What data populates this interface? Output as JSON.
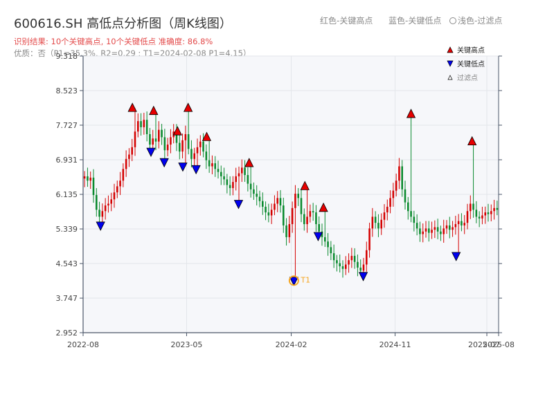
{
  "header": {
    "title": "600616.SH 高低点分析图（周K线图）",
    "summary": "识别结果: 10个关键高点, 10个关键低点  准确度: 86.8%",
    "quality": "优质：否（P1=35.3%, R2=0.29 ; T1=2024-02-08 P1=4.15）",
    "legend_top": [
      "红色-关键高点",
      "蓝色-关键低点",
      "浅色-过滤点"
    ]
  },
  "colors": {
    "up": "#d40000",
    "down": "#0a8a2e",
    "high_marker": "#e60000",
    "low_marker": "#0000ee",
    "t1_marker": "#f5a623",
    "axis": "#4a5568",
    "grid": "#e3e6ea",
    "plot_bg": "#f6f7fa"
  },
  "chart_data": {
    "type": "candlestick",
    "title": "600616.SH 高低点分析图（周K线图）",
    "x_ticks": [
      "2022-08",
      "2023-05",
      "2024-02",
      "2024-11",
      "2025-07",
      "2025-08"
    ],
    "y_ticks": [
      "2.952",
      "3.747",
      "4.543",
      "5.339",
      "6.135",
      "6.931",
      "7.727",
      "8.523",
      "9.318"
    ],
    "ylim": [
      2.952,
      9.318
    ],
    "grid": true,
    "legend": {
      "placement": "top-right",
      "entries": [
        {
          "label": "关键高点",
          "marker": "up-triangle",
          "color": "#e60000"
        },
        {
          "label": "关键低点",
          "marker": "down-triangle",
          "color": "#0000ee"
        },
        {
          "label": "过滤点",
          "marker": "small-up-triangle",
          "color": "#ffffff"
        }
      ]
    },
    "annotations": [
      {
        "label": "T1",
        "date": "2024-02-08",
        "value": 4.15
      }
    ],
    "key_highs": [
      {
        "date": "2022-12-09",
        "value": 8.12
      },
      {
        "date": "2023-02-03",
        "value": 8.05
      },
      {
        "date": "2023-04-07",
        "value": 7.58
      },
      {
        "date": "2023-05-05",
        "value": 8.12
      },
      {
        "date": "2023-06-23",
        "value": 7.45
      },
      {
        "date": "2023-10-13",
        "value": 6.85
      },
      {
        "date": "2024-03-08",
        "value": 6.32
      },
      {
        "date": "2024-04-26",
        "value": 5.82
      },
      {
        "date": "2024-12-13",
        "value": 7.98
      },
      {
        "date": "2025-05-23",
        "value": 7.35
      }
    ],
    "key_lows": [
      {
        "date": "2022-09-16",
        "value": 5.42
      },
      {
        "date": "2023-01-27",
        "value": 7.12
      },
      {
        "date": "2023-03-03",
        "value": 6.88
      },
      {
        "date": "2023-04-21",
        "value": 6.78
      },
      {
        "date": "2023-05-26",
        "value": 6.72
      },
      {
        "date": "2023-09-15",
        "value": 5.92
      },
      {
        "date": "2024-02-08",
        "value": 4.15
      },
      {
        "date": "2024-04-12",
        "value": 5.18
      },
      {
        "date": "2024-08-09",
        "value": 4.26
      },
      {
        "date": "2025-04-11",
        "value": 4.72
      }
    ],
    "closes": [
      6.55,
      6.45,
      6.52,
      6.12,
      5.78,
      5.62,
      5.75,
      5.88,
      5.92,
      6.02,
      6.18,
      6.32,
      6.45,
      6.72,
      6.95,
      7.05,
      7.22,
      7.58,
      7.82,
      7.68,
      7.85,
      7.52,
      7.28,
      7.42,
      7.35,
      7.62,
      7.45,
      7.15,
      7.28,
      7.45,
      7.58,
      7.32,
      7.12,
      7.38,
      7.52,
      7.18,
      6.95,
      7.08,
      7.22,
      7.35,
      7.12,
      6.92,
      6.78,
      6.85,
      6.72,
      6.65,
      6.55,
      6.48,
      6.35,
      6.28,
      6.42,
      6.55,
      6.62,
      6.75,
      6.58,
      6.38,
      6.25,
      6.15,
      6.08,
      5.98,
      5.85,
      5.72,
      5.65,
      5.78,
      5.92,
      6.05,
      5.88,
      5.42,
      5.15,
      5.45,
      5.82,
      6.15,
      6.05,
      5.68,
      5.45,
      5.62,
      5.75,
      5.72,
      5.45,
      5.28,
      5.15,
      5.05,
      4.92,
      4.78,
      4.62,
      4.55,
      4.48,
      4.42,
      4.52,
      4.62,
      4.72,
      4.58,
      4.45,
      4.38,
      4.52,
      4.85,
      5.35,
      5.62,
      5.48,
      5.35,
      5.55,
      5.72,
      5.85,
      6.05,
      6.22,
      6.45,
      6.78,
      6.25,
      5.95,
      5.75,
      5.62,
      5.48,
      5.35,
      5.22,
      5.28,
      5.35,
      5.25,
      5.32,
      5.38,
      5.28,
      5.22,
      5.35,
      5.42,
      5.32,
      5.38,
      5.45,
      5.52,
      5.42,
      5.48,
      5.75,
      5.92,
      5.78,
      5.62,
      5.58,
      5.65,
      5.72,
      5.68,
      5.75,
      5.82,
      5.78
    ]
  }
}
